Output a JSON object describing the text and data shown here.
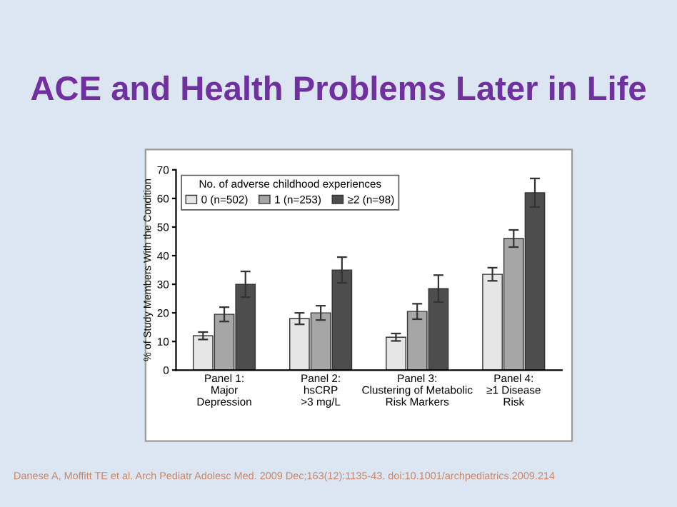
{
  "chart_data": {
    "type": "bar",
    "title": "ACE and Health Problems Later in Life",
    "ylabel": "% of Study Members With the Condition",
    "legend_title": "No. of adverse childhood experiences",
    "categories": [
      "Panel 1:\nMajor\nDepression",
      "Panel 2:\nhsCRP\n>3 mg/L",
      "Panel 3:\nClustering of Metabolic\nRisk Markers",
      "Panel 4:\n≥1 Disease\nRisk"
    ],
    "series": [
      {
        "name": "0 (n=502)",
        "color": "#e6e6e6",
        "values": [
          12,
          18,
          11.5,
          33.5
        ],
        "errors": [
          1.3,
          2,
          1.3,
          2.3
        ]
      },
      {
        "name": "1 (n=253)",
        "color": "#a6a6a6",
        "values": [
          19.5,
          20,
          20.5,
          46
        ],
        "errors": [
          2.5,
          2.5,
          2.7,
          3
        ]
      },
      {
        "name": "≥2 (n=98)",
        "color": "#4d4d4d",
        "values": [
          30,
          35,
          28.5,
          62
        ],
        "errors": [
          4.5,
          4.5,
          4.7,
          5
        ]
      }
    ],
    "ylim": [
      0,
      70
    ],
    "yticks": [
      0,
      10,
      20,
      30,
      40,
      50,
      60,
      70
    ],
    "legend": "top left",
    "annotations": [
      "Danese A, Moffitt TE et al. Arch Pediatr Adolesc Med. 2009 Dec;163(12):1135-43. doi:10.1001/archpediatrics.2009.214"
    ]
  }
}
